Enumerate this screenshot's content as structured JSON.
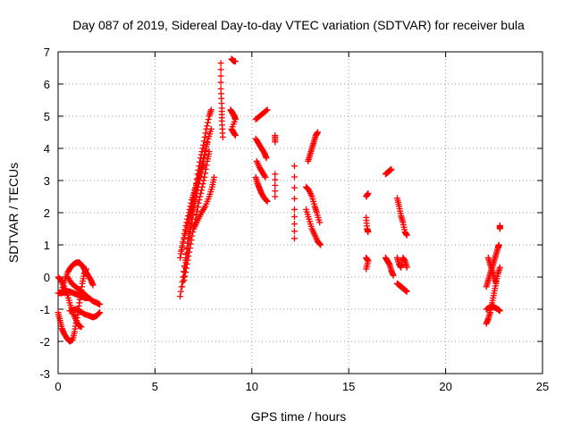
{
  "chart_data": {
    "type": "scatter",
    "title": "Day 087 of 2019, Sidereal Day-to-day VTEC variation (SDTVAR) for receiver bula",
    "xlabel": "GPS time / hours",
    "ylabel": "SDTVAR / TECUs",
    "xlim": [
      0,
      25
    ],
    "ylim": [
      -3,
      7
    ],
    "xticks": [
      0,
      5,
      10,
      15,
      20,
      25
    ],
    "yticks": [
      -3,
      -2,
      -1,
      0,
      1,
      2,
      3,
      4,
      5,
      6,
      7
    ],
    "grid": true,
    "marker": "+",
    "marker_color": "#ff0000",
    "series": [
      {
        "name": "SDTVAR",
        "segments": [
          [
            [
              0.0,
              0.0
            ],
            [
              0.15,
              -0.1
            ],
            [
              0.3,
              -0.3
            ],
            [
              0.45,
              -0.5
            ],
            [
              0.6,
              -0.8
            ],
            [
              0.75,
              -1.1
            ],
            [
              0.9,
              -1.3
            ],
            [
              1.05,
              -1.5
            ],
            [
              1.2,
              -1.55
            ]
          ],
          [
            [
              0.0,
              -1.1
            ],
            [
              0.1,
              -1.35
            ],
            [
              0.2,
              -1.6
            ],
            [
              0.3,
              -1.75
            ],
            [
              0.45,
              -1.9
            ],
            [
              0.6,
              -2.0
            ],
            [
              0.75,
              -1.95
            ],
            [
              0.85,
              -1.7
            ],
            [
              0.95,
              -1.35
            ],
            [
              1.05,
              -1.0
            ],
            [
              1.15,
              -0.6
            ],
            [
              1.25,
              -0.2
            ],
            [
              1.35,
              0.1
            ],
            [
              1.45,
              0.25
            ]
          ],
          [
            [
              0.2,
              -0.4
            ],
            [
              0.35,
              -0.1
            ],
            [
              0.5,
              0.15
            ],
            [
              0.65,
              0.3
            ],
            [
              0.8,
              0.4
            ],
            [
              0.95,
              0.45
            ],
            [
              1.1,
              0.45
            ],
            [
              1.25,
              0.35
            ],
            [
              1.4,
              0.2
            ],
            [
              1.55,
              0.05
            ],
            [
              1.7,
              -0.1
            ],
            [
              1.8,
              -0.25
            ]
          ],
          [
            [
              0.0,
              -0.5
            ],
            [
              0.2,
              -0.5
            ],
            [
              0.4,
              -0.45
            ],
            [
              0.6,
              -0.45
            ],
            [
              0.8,
              -0.5
            ],
            [
              1.0,
              -0.55
            ],
            [
              1.2,
              -0.6
            ],
            [
              1.4,
              -0.65
            ],
            [
              1.6,
              -0.65
            ],
            [
              1.8,
              -0.75
            ],
            [
              2.0,
              -0.8
            ],
            [
              2.15,
              -0.85
            ]
          ],
          [
            [
              0.6,
              -1.05
            ],
            [
              0.85,
              -1.0
            ],
            [
              1.1,
              -1.05
            ],
            [
              1.35,
              -1.15
            ],
            [
              1.6,
              -1.2
            ],
            [
              1.8,
              -1.25
            ],
            [
              2.0,
              -1.2
            ],
            [
              2.15,
              -1.1
            ]
          ],
          [
            [
              0.5,
              0.0
            ],
            [
              0.7,
              -0.2
            ],
            [
              0.9,
              -0.3
            ],
            [
              1.1,
              -0.4
            ],
            [
              1.3,
              -0.5
            ],
            [
              1.5,
              -0.6
            ]
          ],
          [
            [
              6.3,
              -0.6
            ],
            [
              6.45,
              0.0
            ],
            [
              6.6,
              0.7
            ],
            [
              6.75,
              1.4
            ],
            [
              6.9,
              2.0
            ],
            [
              7.05,
              2.6
            ],
            [
              7.2,
              3.2
            ],
            [
              7.35,
              3.7
            ],
            [
              7.5,
              4.1
            ],
            [
              7.65,
              4.6
            ],
            [
              7.8,
              5.0
            ],
            [
              7.9,
              5.2
            ]
          ],
          [
            [
              6.4,
              -0.3
            ],
            [
              6.55,
              0.3
            ],
            [
              6.7,
              0.9
            ],
            [
              6.85,
              1.5
            ],
            [
              7.0,
              2.1
            ],
            [
              7.15,
              2.6
            ],
            [
              7.3,
              3.0
            ],
            [
              7.45,
              3.5
            ],
            [
              7.6,
              3.9
            ],
            [
              7.7,
              4.2
            ]
          ],
          [
            [
              6.3,
              0.6
            ],
            [
              6.45,
              1.1
            ],
            [
              6.6,
              1.6
            ],
            [
              6.75,
              2.0
            ],
            [
              6.9,
              2.4
            ],
            [
              7.05,
              2.7
            ],
            [
              7.2,
              3.0
            ],
            [
              7.35,
              3.3
            ],
            [
              7.5,
              3.5
            ]
          ],
          [
            [
              6.35,
              0.8
            ],
            [
              6.55,
              1.3
            ],
            [
              6.75,
              1.8
            ],
            [
              6.95,
              2.3
            ],
            [
              7.15,
              2.8
            ],
            [
              7.35,
              3.3
            ],
            [
              7.55,
              3.8
            ],
            [
              7.75,
              4.3
            ],
            [
              7.9,
              4.6
            ]
          ],
          [
            [
              6.5,
              -0.1
            ],
            [
              6.65,
              0.4
            ],
            [
              6.8,
              0.9
            ],
            [
              6.95,
              1.4
            ],
            [
              7.1,
              1.8
            ],
            [
              7.25,
              2.3
            ],
            [
              7.4,
              2.7
            ],
            [
              7.55,
              3.1
            ],
            [
              7.7,
              3.6
            ],
            [
              7.8,
              3.9
            ]
          ],
          [
            [
              7.0,
              1.5
            ],
            [
              7.2,
              1.75
            ],
            [
              7.4,
              2.0
            ],
            [
              7.6,
              2.2
            ],
            [
              7.8,
              2.5
            ],
            [
              7.95,
              2.8
            ],
            [
              8.05,
              3.1
            ]
          ],
          [
            [
              8.4,
              6.65
            ],
            [
              8.4,
              5.85
            ],
            [
              8.45,
              5.25
            ],
            [
              8.45,
              4.85
            ],
            [
              8.5,
              4.35
            ]
          ],
          [
            [
              8.95,
              6.78
            ],
            [
              9.05,
              6.72
            ],
            [
              9.15,
              6.7
            ]
          ],
          [
            [
              8.9,
              5.2
            ],
            [
              9.0,
              5.1
            ],
            [
              9.1,
              5.0
            ],
            [
              9.15,
              4.9
            ],
            [
              8.95,
              4.6
            ],
            [
              9.05,
              4.5
            ],
            [
              9.15,
              4.4
            ]
          ],
          [
            [
              10.2,
              4.9
            ],
            [
              10.4,
              5.0
            ],
            [
              10.6,
              5.1
            ],
            [
              10.8,
              5.2
            ]
          ],
          [
            [
              10.2,
              4.3
            ],
            [
              10.35,
              4.15
            ],
            [
              10.5,
              4.0
            ],
            [
              10.65,
              3.85
            ],
            [
              10.75,
              3.7
            ]
          ],
          [
            [
              10.25,
              3.6
            ],
            [
              10.4,
              3.4
            ],
            [
              10.55,
              3.25
            ],
            [
              10.7,
              3.1
            ]
          ],
          [
            [
              10.2,
              3.1
            ],
            [
              10.3,
              2.9
            ],
            [
              10.4,
              2.75
            ],
            [
              10.5,
              2.6
            ],
            [
              10.65,
              2.45
            ],
            [
              10.8,
              2.35
            ]
          ],
          [
            [
              11.2,
              4.4
            ],
            [
              11.2,
              4.2
            ]
          ],
          [
            [
              11.2,
              3.2
            ],
            [
              11.2,
              2.5
            ]
          ],
          [
            [
              12.2,
              3.45
            ],
            [
              12.2,
              2.1
            ],
            [
              12.2,
              1.2
            ]
          ],
          [
            [
              12.9,
              3.6
            ],
            [
              13.0,
              3.8
            ],
            [
              13.1,
              4.0
            ],
            [
              13.2,
              4.2
            ],
            [
              13.3,
              4.4
            ],
            [
              13.4,
              4.5
            ]
          ],
          [
            [
              12.8,
              2.8
            ],
            [
              12.95,
              2.7
            ],
            [
              13.1,
              2.5
            ],
            [
              13.25,
              2.2
            ],
            [
              13.35,
              2.0
            ],
            [
              13.5,
              1.7
            ]
          ],
          [
            [
              12.8,
              2.1
            ],
            [
              12.95,
              1.8
            ],
            [
              13.1,
              1.5
            ],
            [
              13.25,
              1.3
            ],
            [
              13.4,
              1.1
            ],
            [
              13.55,
              1.0
            ]
          ],
          [
            [
              15.9,
              2.5
            ],
            [
              16.0,
              2.6
            ]
          ],
          [
            [
              15.9,
              1.85
            ],
            [
              15.95,
              1.5
            ],
            [
              16.0,
              1.4
            ]
          ],
          [
            [
              15.9,
              0.6
            ],
            [
              16.0,
              0.5
            ],
            [
              15.9,
              0.25
            ]
          ],
          [
            [
              16.9,
              3.2
            ],
            [
              17.0,
              3.25
            ],
            [
              17.1,
              3.3
            ],
            [
              17.2,
              3.35
            ]
          ],
          [
            [
              16.9,
              0.6
            ],
            [
              17.0,
              0.5
            ],
            [
              17.1,
              0.4
            ],
            [
              17.2,
              0.2
            ],
            [
              17.3,
              0.05
            ]
          ],
          [
            [
              17.5,
              2.45
            ],
            [
              17.6,
              2.2
            ],
            [
              17.7,
              1.9
            ],
            [
              17.8,
              1.7
            ],
            [
              17.9,
              1.4
            ],
            [
              18.0,
              1.3
            ]
          ],
          [
            [
              17.5,
              0.6
            ],
            [
              17.6,
              0.4
            ],
            [
              17.7,
              0.3
            ],
            [
              17.8,
              0.6
            ],
            [
              17.9,
              0.5
            ],
            [
              18.0,
              0.3
            ]
          ],
          [
            [
              17.5,
              -0.2
            ],
            [
              17.6,
              -0.25
            ],
            [
              17.7,
              -0.3
            ],
            [
              17.8,
              -0.35
            ],
            [
              17.9,
              -0.4
            ],
            [
              18.0,
              -0.45
            ]
          ],
          [
            [
              22.1,
              -1.45
            ],
            [
              22.2,
              -1.3
            ],
            [
              22.3,
              -1.1
            ],
            [
              22.4,
              -0.8
            ],
            [
              22.5,
              -0.5
            ],
            [
              22.6,
              -0.2
            ],
            [
              22.7,
              0.1
            ],
            [
              22.8,
              0.3
            ]
          ],
          [
            [
              22.1,
              -0.3
            ],
            [
              22.2,
              -0.1
            ],
            [
              22.3,
              0.1
            ],
            [
              22.4,
              0.3
            ],
            [
              22.5,
              0.5
            ],
            [
              22.6,
              0.7
            ],
            [
              22.7,
              0.9
            ],
            [
              22.75,
              1.0
            ]
          ],
          [
            [
              22.2,
              0.6
            ],
            [
              22.3,
              0.4
            ],
            [
              22.4,
              0.2
            ],
            [
              22.5,
              0.0
            ],
            [
              22.6,
              -0.2
            ]
          ],
          [
            [
              22.1,
              -1.0
            ],
            [
              22.25,
              -0.95
            ],
            [
              22.4,
              -0.9
            ],
            [
              22.55,
              -0.95
            ],
            [
              22.7,
              -1.0
            ],
            [
              22.8,
              -1.05
            ]
          ],
          [
            [
              22.8,
              1.5
            ],
            [
              22.8,
              1.6
            ]
          ]
        ]
      }
    ]
  }
}
